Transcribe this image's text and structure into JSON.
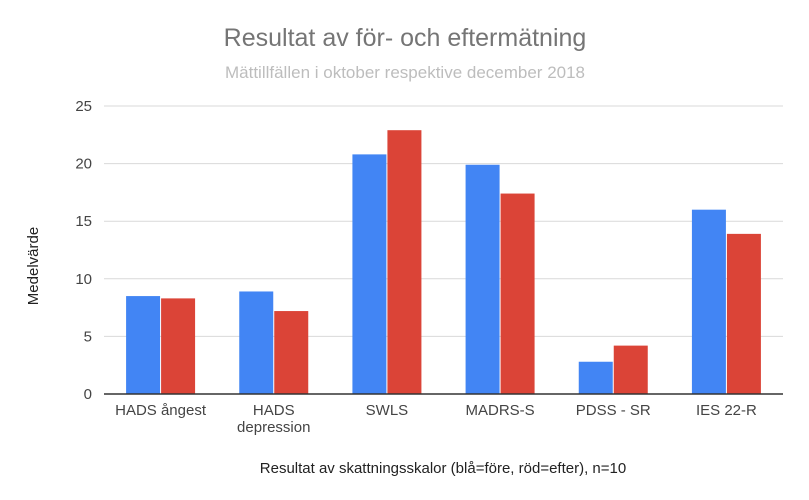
{
  "chart_data": {
    "type": "bar",
    "title": "Resultat av för- och eftermätning",
    "subtitle": "Mättillfällen i oktober respektive december 2018",
    "xlabel": "Resultat av skattningsskalor (blå=före, röd=efter), n=10",
    "ylabel": "Medelvärde",
    "ylim": [
      0,
      25
    ],
    "yticks": [
      0,
      5,
      10,
      15,
      20,
      25
    ],
    "grid": true,
    "legend": "none",
    "categories": [
      "HADS ångest",
      "HADS depression",
      "SWLS",
      "MADRS-S",
      "PDSS - SR",
      "IES 22-R"
    ],
    "series": [
      {
        "color": "#4285F4",
        "values": [
          8.5,
          8.9,
          20.8,
          19.9,
          2.8,
          16.0
        ]
      },
      {
        "color": "#DB4437",
        "values": [
          8.3,
          7.2,
          22.9,
          17.4,
          4.2,
          13.9
        ]
      }
    ]
  }
}
